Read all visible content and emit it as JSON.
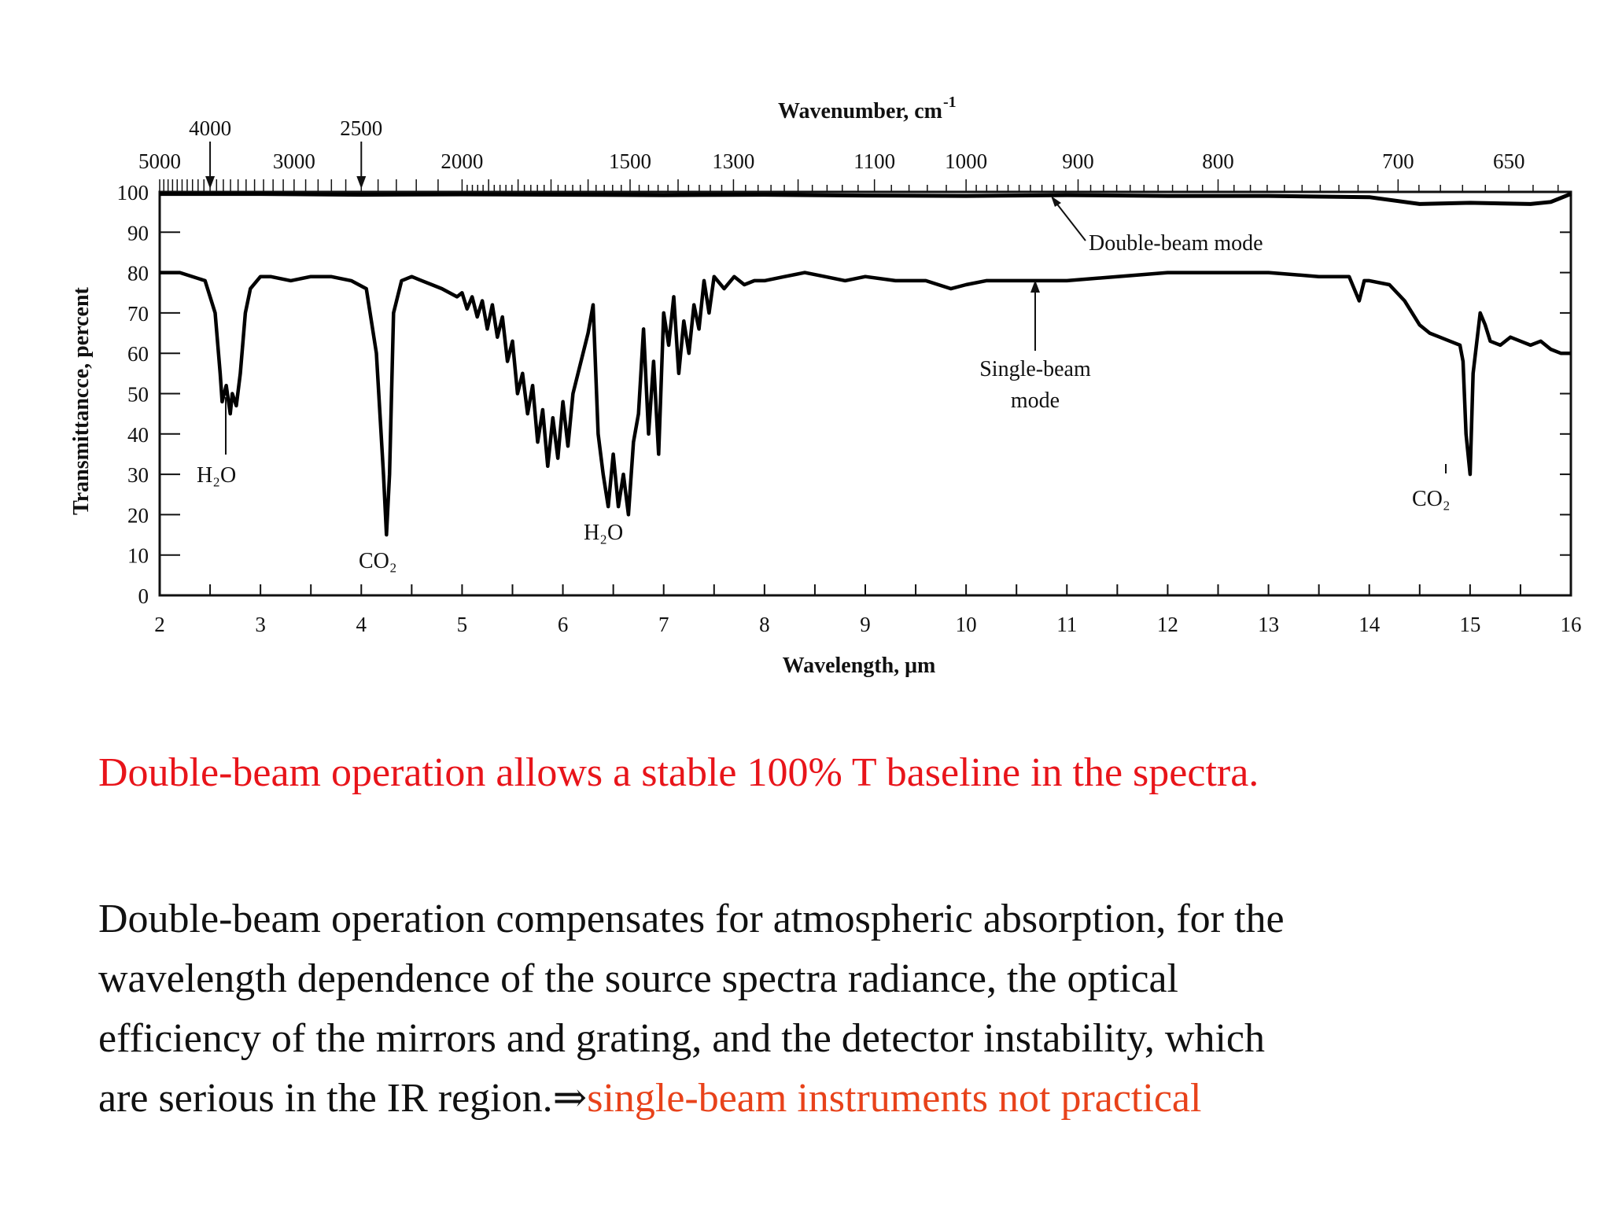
{
  "chart_data": {
    "type": "line",
    "title": "",
    "xlabel": "Wavelength, μm",
    "ylabel": "Transmittancce, percent",
    "x2label": "Wavenumber, cm",
    "x2label_superscript": "-1",
    "xlim": [
      2,
      16
    ],
    "ylim": [
      0,
      100
    ],
    "x_ticks": [
      "2",
      "3",
      "4",
      "5",
      "6",
      "7",
      "8",
      "9",
      "10",
      "11",
      "12",
      "13",
      "14",
      "15",
      "16"
    ],
    "y_ticks": [
      "0",
      "10",
      "20",
      "30",
      "40",
      "50",
      "60",
      "70",
      "80",
      "90",
      "100"
    ],
    "wavenumber_ticks": [
      {
        "label": "5000",
        "x": 2.0
      },
      {
        "label": "3000",
        "x": 3.333
      },
      {
        "label": "2000",
        "x": 5.0
      },
      {
        "label": "1500",
        "x": 6.667
      },
      {
        "label": "1300",
        "x": 7.692
      },
      {
        "label": "1100",
        "x": 9.091
      },
      {
        "label": "1000",
        "x": 10.0
      },
      {
        "label": "900",
        "x": 11.111
      },
      {
        "label": "800",
        "x": 12.5
      },
      {
        "label": "700",
        "x": 14.286
      },
      {
        "label": "650",
        "x": 15.385
      }
    ],
    "wavenumber_arrows": [
      {
        "label": "4000",
        "x": 2.5
      },
      {
        "label": "2500",
        "x": 4.0
      }
    ],
    "series": [
      {
        "name": "Double-beam mode",
        "x": [
          2.0,
          3.0,
          4.0,
          5.0,
          6.0,
          7.0,
          8.0,
          9.0,
          10.0,
          11.0,
          12.0,
          13.0,
          14.0,
          14.5,
          15.0,
          15.6,
          15.8,
          16.0
        ],
        "y": [
          99.5,
          99.5,
          99.3,
          99.4,
          99.3,
          99.2,
          99.3,
          99.1,
          99.0,
          99.2,
          99.0,
          99.0,
          98.7,
          97.0,
          97.3,
          97.0,
          97.5,
          99.5
        ]
      },
      {
        "name": "Single-beam mode",
        "x": [
          2.0,
          2.2,
          2.45,
          2.55,
          2.6,
          2.62,
          2.66,
          2.7,
          2.72,
          2.76,
          2.8,
          2.85,
          2.9,
          3.0,
          3.1,
          3.3,
          3.5,
          3.7,
          3.9,
          4.05,
          4.15,
          4.22,
          4.25,
          4.28,
          4.32,
          4.4,
          4.5,
          4.6,
          4.7,
          4.8,
          4.95,
          5.0,
          5.05,
          5.1,
          5.15,
          5.2,
          5.25,
          5.3,
          5.35,
          5.4,
          5.45,
          5.5,
          5.55,
          5.6,
          5.65,
          5.7,
          5.75,
          5.8,
          5.85,
          5.9,
          5.95,
          6.0,
          6.05,
          6.1,
          6.15,
          6.2,
          6.25,
          6.3,
          6.35,
          6.4,
          6.45,
          6.5,
          6.55,
          6.6,
          6.65,
          6.7,
          6.75,
          6.8,
          6.85,
          6.9,
          6.95,
          7.0,
          7.05,
          7.1,
          7.15,
          7.2,
          7.25,
          7.3,
          7.35,
          7.4,
          7.45,
          7.5,
          7.6,
          7.7,
          7.8,
          7.9,
          8.0,
          8.2,
          8.4,
          8.6,
          8.8,
          9.0,
          9.3,
          9.6,
          9.85,
          10.0,
          10.2,
          10.6,
          11.0,
          11.5,
          12.0,
          12.5,
          13.0,
          13.5,
          13.8,
          13.85,
          13.9,
          13.95,
          14.0,
          14.2,
          14.35,
          14.5,
          14.6,
          14.7,
          14.8,
          14.9,
          14.93,
          14.96,
          15.0,
          15.03,
          15.1,
          15.15,
          15.2,
          15.3,
          15.4,
          15.5,
          15.6,
          15.7,
          15.8,
          15.9,
          16.0
        ],
        "y": [
          80,
          80,
          78,
          70,
          55,
          48,
          52,
          45,
          50,
          47,
          55,
          70,
          76,
          79,
          79,
          78,
          79,
          79,
          78,
          76,
          60,
          30,
          15,
          30,
          70,
          78,
          79,
          78,
          77,
          76,
          74,
          75,
          71,
          74,
          69,
          73,
          66,
          72,
          64,
          69,
          58,
          63,
          50,
          55,
          45,
          52,
          38,
          46,
          32,
          44,
          34,
          48,
          37,
          50,
          55,
          60,
          65,
          72,
          40,
          30,
          22,
          35,
          22,
          30,
          20,
          38,
          45,
          66,
          40,
          58,
          35,
          70,
          62,
          74,
          55,
          68,
          60,
          72,
          66,
          78,
          70,
          79,
          76,
          79,
          77,
          78,
          78,
          79,
          80,
          79,
          78,
          79,
          78,
          78,
          76,
          77,
          78,
          78,
          78,
          79,
          80,
          80,
          80,
          79,
          79,
          76,
          73,
          78,
          78,
          77,
          73,
          67,
          65,
          64,
          63,
          62,
          58,
          40,
          30,
          55,
          70,
          67,
          63,
          62,
          64,
          63,
          62,
          63,
          61,
          60,
          60
        ]
      }
    ],
    "annotations": {
      "h2o_left": "H₂O",
      "co2_left": "CO₂",
      "h2o_mid": "H₂O",
      "co2_right": "CO₂",
      "double_beam_mode": "Double-beam mode",
      "single_beam_line1": "Single-beam",
      "single_beam_line2": "mode"
    },
    "grid": false,
    "legend": "none"
  },
  "captions": {
    "red_statement": "Double-beam operation allows a stable 100% T baseline in the spectra.",
    "body_line1": "Double-beam operation compensates for atmospheric absorption, for the",
    "body_line2": "wavelength dependence of the source spectra radiance, the optical",
    "body_line3": "efficiency of the mirrors and grating, and the detector instability, which",
    "body_line4_start": "are serious in the IR region.",
    "arrow_symbol": "⇒",
    "body_highlight": "single-beam instruments not practical"
  },
  "colors": {
    "red_caption": "#e8141a",
    "highlight": "#e8421a",
    "ink": "#111111"
  }
}
